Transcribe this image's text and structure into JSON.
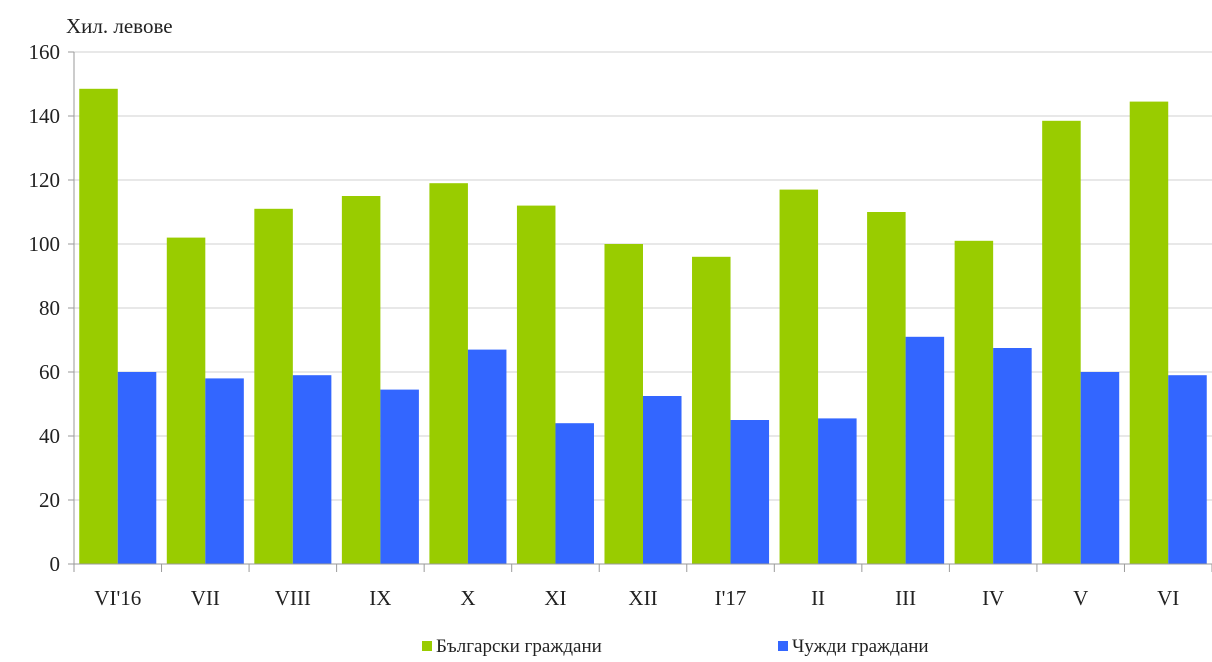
{
  "chart_data": {
    "type": "bar",
    "unit_label": "Хил. левове",
    "categories": [
      "VI'16",
      "VII",
      "VIII",
      "IX",
      "X",
      "XI",
      "XII",
      "I'17",
      "II",
      "III",
      "IV",
      "V",
      "VI"
    ],
    "series": [
      {
        "name": "Български граждани",
        "color": "#99cc00",
        "values": [
          148.5,
          102,
          111,
          115,
          119,
          112,
          100,
          96,
          117,
          110,
          101,
          138.5,
          144.5
        ]
      },
      {
        "name": "Чужди граждани",
        "color": "#3366ff",
        "values": [
          60,
          58,
          59,
          54.5,
          67,
          44,
          52.5,
          45,
          45.5,
          71,
          67.5,
          60,
          59
        ]
      }
    ],
    "ylim": [
      0,
      160
    ],
    "yticks": [
      0,
      20,
      40,
      60,
      80,
      100,
      120,
      140,
      160
    ],
    "grid": true,
    "legend": "bottom-center"
  }
}
